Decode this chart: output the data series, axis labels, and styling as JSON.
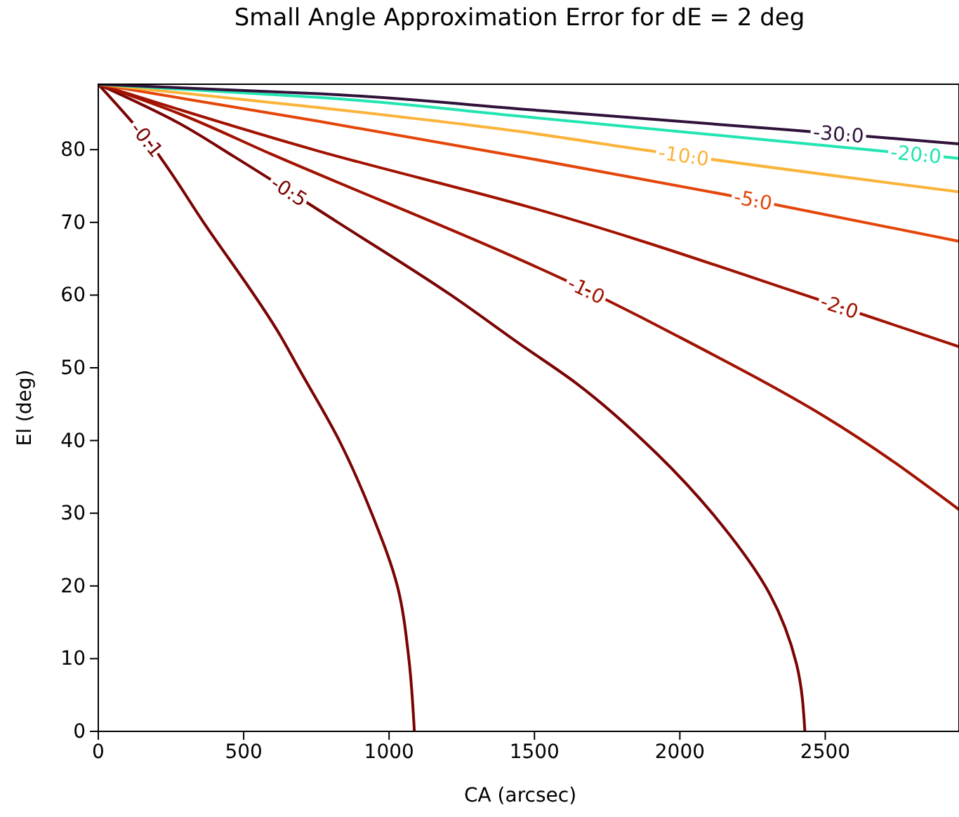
{
  "chart_data": {
    "type": "line",
    "title": "Small Angle Approximation Error for dE = 2 deg",
    "xlabel": "CA (arcsec)",
    "ylabel": "El (deg)",
    "xlim": [
      0,
      2960
    ],
    "ylim": [
      0,
      89
    ],
    "xticks": [
      0,
      500,
      1000,
      1500,
      2000,
      2500
    ],
    "yticks": [
      0,
      10,
      20,
      30,
      40,
      50,
      60,
      70,
      80
    ],
    "grid": false,
    "marker": "none",
    "line_style": "solid",
    "series": [
      {
        "name": "-0.1",
        "color": "#7a0403",
        "x": [
          0,
          179,
          362,
          628,
          691,
          831,
          942,
          1029,
          1068,
          1087
        ],
        "values": [
          89,
          80.8,
          70,
          54.3,
          49.8,
          39.8,
          29.8,
          19.9,
          10,
          0
        ]
      },
      {
        "name": "-0.5",
        "color": "#7a0403",
        "x": [
          0,
          275,
          469,
          824,
          1213,
          1449,
          1643,
          1918,
          2140,
          2309,
          2401,
          2430
        ],
        "values": [
          89,
          83.7,
          79,
          70,
          60,
          53.3,
          47.9,
          38.3,
          28.6,
          18.9,
          9.3,
          0
        ]
      },
      {
        "name": "-1.0",
        "color": "#a11201",
        "x": [
          0,
          275,
          594,
          1483,
          1657,
          1874,
          1995,
          2498,
          2960
        ],
        "values": [
          89,
          85,
          79.4,
          64.3,
          61.1,
          56.8,
          54.3,
          43.3,
          30.5
        ]
      },
      {
        "name": "-2.0",
        "color": "#a11201",
        "x": [
          0,
          758,
          1483,
          2498,
          2960
        ],
        "values": [
          89,
          79.8,
          72.1,
          59.1,
          52.9
        ]
      },
      {
        "name": "-5.0",
        "color": "#e4460a",
        "x": [
          0,
          758,
          1483,
          2159,
          2960
        ],
        "values": [
          89,
          83.9,
          78.8,
          73.8,
          67.4
        ]
      },
      {
        "name": "-10.0",
        "color": "#fbb33a",
        "x": [
          0,
          758,
          1449,
          1870,
          2960
        ],
        "values": [
          89,
          85.8,
          82.5,
          80,
          74.2
        ]
      },
      {
        "name": "-20.0",
        "color": "#23e5b2",
        "x": [
          0,
          758,
          1449,
          2647,
          2960
        ],
        "values": [
          89,
          87.2,
          84.6,
          80,
          78.8
        ]
      },
      {
        "name": "-30.0",
        "color": "#30123b",
        "x": [
          0,
          758,
          1449,
          2382,
          2960
        ],
        "values": [
          89,
          87.7,
          85.6,
          82.7,
          80.8
        ]
      }
    ]
  }
}
